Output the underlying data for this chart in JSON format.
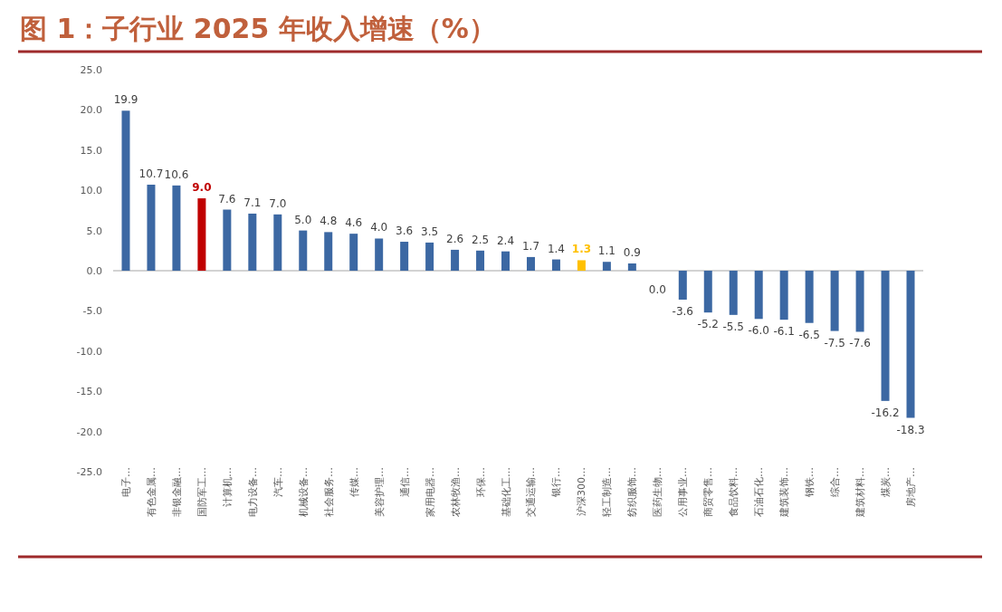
{
  "chart_data": {
    "type": "bar",
    "title": "图 1：子行业 2025 年收入增速（%）",
    "categories": [
      "电子…",
      "有色金属…",
      "非银金融…",
      "国防军工…",
      "计算机…",
      "电力设备…",
      "汽车…",
      "机械设备…",
      "社会服务…",
      "传媒…",
      "美容护理…",
      "通信…",
      "家用电器…",
      "农林牧渔…",
      "环保…",
      "基础化工…",
      "交通运输…",
      "银行…",
      "沪深300…",
      "轻工制造…",
      "纺织服饰…",
      "医药生物…",
      "公用事业…",
      "商贸零售…",
      "食品饮料…",
      "石油石化…",
      "建筑装饰…",
      "钢铁…",
      "综合…",
      "建筑材料…",
      "煤炭…",
      "房地产…"
    ],
    "values": [
      19.9,
      10.7,
      10.6,
      9.0,
      7.6,
      7.1,
      7.0,
      5.0,
      4.8,
      4.6,
      4.0,
      3.6,
      3.5,
      2.6,
      2.5,
      2.4,
      1.7,
      1.4,
      1.3,
      1.1,
      0.9,
      0.0,
      -3.6,
      -5.2,
      -5.5,
      -6.0,
      -6.1,
      -6.5,
      -7.5,
      -7.6,
      -16.2,
      -18.3
    ],
    "colors": [
      "#3c68a3",
      "#3c68a3",
      "#3c68a3",
      "#c00000",
      "#3c68a3",
      "#3c68a3",
      "#3c68a3",
      "#3c68a3",
      "#3c68a3",
      "#3c68a3",
      "#3c68a3",
      "#3c68a3",
      "#3c68a3",
      "#3c68a3",
      "#3c68a3",
      "#3c68a3",
      "#3c68a3",
      "#3c68a3",
      "#ffc000",
      "#3c68a3",
      "#3c68a3",
      "#3c68a3",
      "#3c68a3",
      "#3c68a3",
      "#3c68a3",
      "#3c68a3",
      "#3c68a3",
      "#3c68a3",
      "#3c68a3",
      "#3c68a3",
      "#3c68a3",
      "#3c68a3"
    ],
    "ylim": [
      -25,
      25
    ],
    "yticks": [
      {
        "value": -25,
        "label": "-25.0"
      },
      {
        "value": -20,
        "label": "-20.0"
      },
      {
        "value": -15,
        "label": "-15.0"
      },
      {
        "value": -10,
        "label": "-10.0"
      },
      {
        "value": -5,
        "label": "-5.0"
      },
      {
        "value": 0,
        "label": "0.0"
      },
      {
        "value": 5,
        "label": "5.0"
      },
      {
        "value": 10,
        "label": "10.0"
      },
      {
        "value": 15,
        "label": "15.0"
      },
      {
        "value": 20,
        "label": "20.0"
      },
      {
        "value": 25,
        "label": "25.0"
      }
    ],
    "value_labels": [
      "19.9",
      "10.7",
      "10.6",
      "9.0",
      "7.6",
      "7.1",
      "7.0",
      "5.0",
      "4.8",
      "4.6",
      "4.0",
      "3.6",
      "3.5",
      "2.6",
      "2.5",
      "2.4",
      "1.7",
      "1.4",
      "1.3",
      "1.1",
      "0.9",
      "0.0",
      "-3.6",
      "-5.2",
      "-5.5",
      "-6.0",
      "-6.1",
      "-6.5",
      "-7.5",
      "-7.6",
      "-16.2",
      "-18.3"
    ]
  }
}
